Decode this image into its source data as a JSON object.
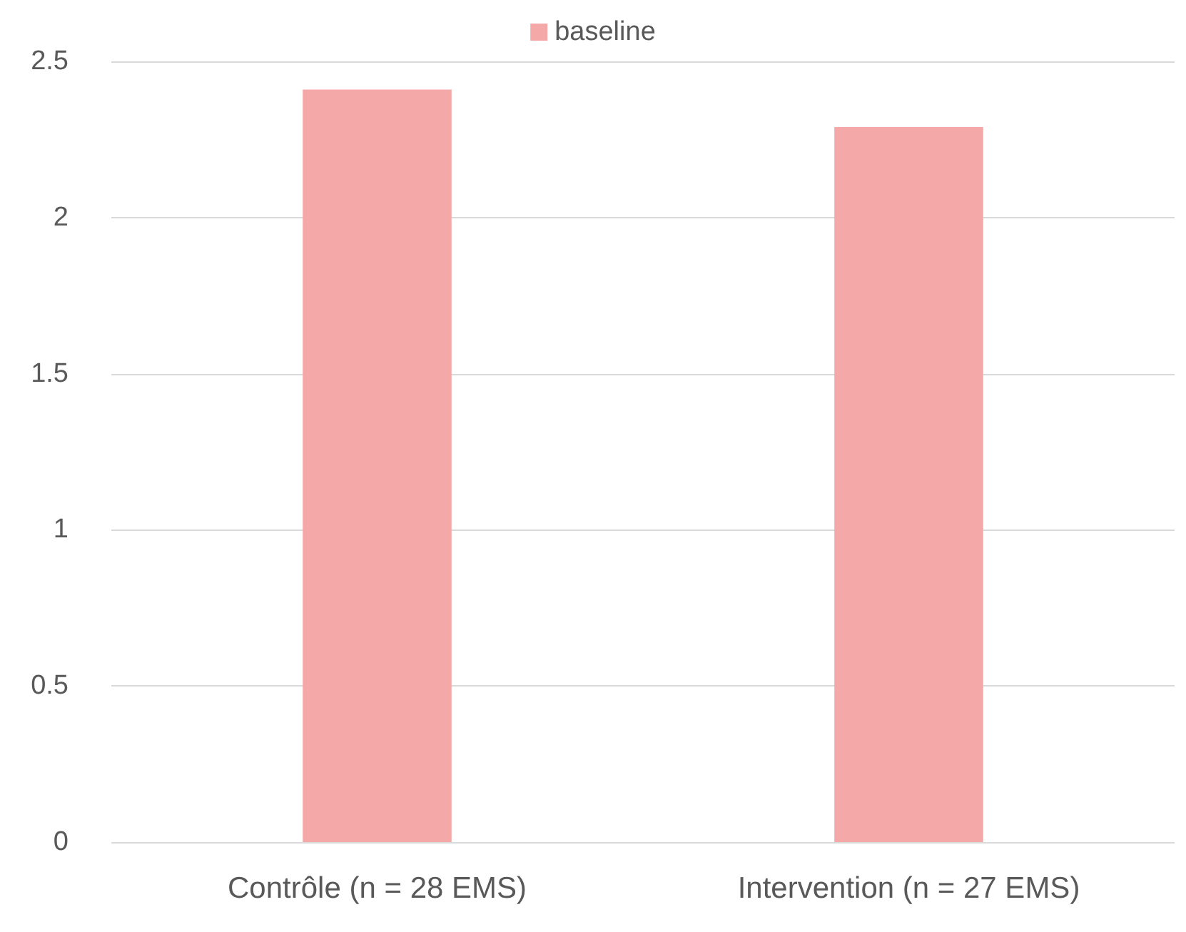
{
  "chart_data": {
    "type": "bar",
    "categories": [
      "Contrôle (n = 28 EMS)",
      "Intervention (n = 27 EMS)"
    ],
    "series": [
      {
        "name": "baseline",
        "color": "#f4a9a8",
        "values": [
          2.41,
          2.29
        ]
      }
    ],
    "ylim": [
      0,
      2.5
    ],
    "yticks": [
      0,
      0.5,
      1,
      1.5,
      2,
      2.5
    ],
    "grid": "y",
    "legend": "top"
  }
}
